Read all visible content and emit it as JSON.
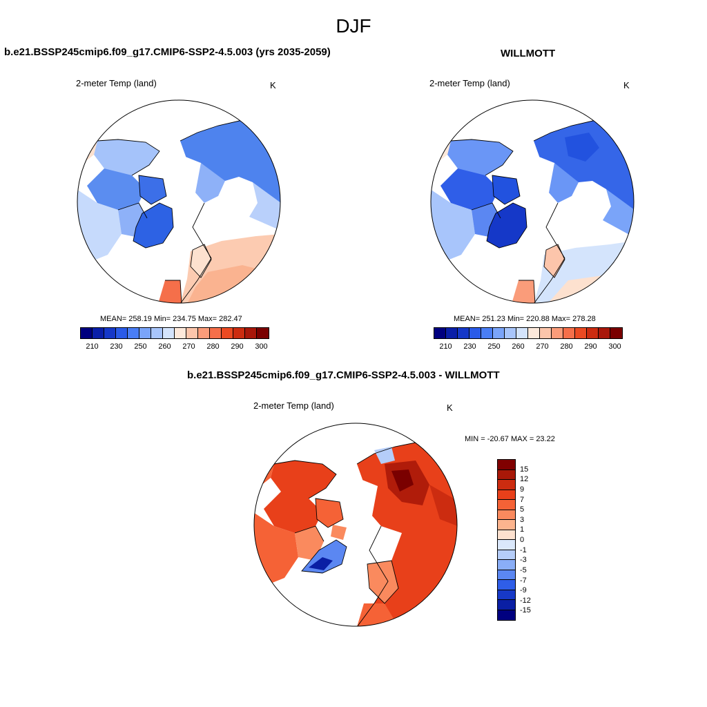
{
  "page_title": "DJF",
  "panels": [
    {
      "title": "b.e21.BSSP245cmip6.f09_g17.CMIP6-SSP2-4.5.003 (yrs 2035-2059)",
      "variable": "2-meter Temp (land)",
      "units": "K",
      "stats": "MEAN= 258.19  Min= 234.75  Max= 282.47",
      "style": "warm"
    },
    {
      "title": "WILLMOTT",
      "variable": "2-meter Temp (land)",
      "units": "K",
      "stats": "MEAN= 251.23  Min= 220.88  Max= 278.28",
      "style": "cold"
    },
    {
      "title": "b.e21.BSSP245cmip6.f09_g17.CMIP6-SSP2-4.5.003 - WILLMOTT",
      "variable": "2-meter Temp (land)",
      "units": "K",
      "stats": "MIN = -20.67 MAX =  23.22",
      "style": "diff"
    }
  ],
  "abs_colorbar": {
    "colors": [
      "#00007f",
      "#0a1fa8",
      "#1538c8",
      "#2a5be8",
      "#4a7ef5",
      "#7aa4f9",
      "#a8c5fb",
      "#d4e4fc",
      "#fde9db",
      "#fcc5ab",
      "#fa9c7a",
      "#f56f4a",
      "#eb4a22",
      "#cc2c10",
      "#a8170a",
      "#7a0000"
    ],
    "tick_labels": [
      "210",
      "230",
      "250",
      "260",
      "270",
      "280",
      "290",
      "300"
    ]
  },
  "diff_colorbar": {
    "colors": [
      "#800000",
      "#a81808",
      "#cc2c10",
      "#e8401a",
      "#f56236",
      "#fa8a5e",
      "#fcb48e",
      "#fde1cf",
      "#dbe8fb",
      "#b5cdf9",
      "#8aaef7",
      "#5b87f2",
      "#2f5ee8",
      "#1739c7",
      "#0a1fa4",
      "#000080"
    ],
    "tick_labels": [
      "15",
      "12",
      "9",
      "7",
      "5",
      "3",
      "1",
      "0",
      "-1",
      "-3",
      "-5",
      "-7",
      "-9",
      "-12",
      "-15"
    ]
  }
}
